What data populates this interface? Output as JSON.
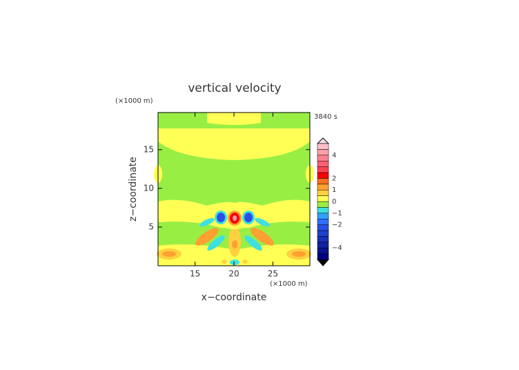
{
  "chart_data": {
    "type": "contour",
    "title": "vertical velocity",
    "xlabel": "x−coordinate",
    "ylabel": "z−coordinate",
    "x_unit": "(×1000 m)",
    "y_unit": "(×1000 m)",
    "time_label": "3840 s",
    "xlim": [
      10.25,
      29.75
    ],
    "ylim": [
      0,
      19.8
    ],
    "xticks": [
      15,
      20,
      25
    ],
    "yticks": [
      5,
      10,
      15
    ],
    "colorbar": {
      "levels": [
        -5,
        -4.5,
        -4,
        -3.5,
        -3,
        -2.5,
        -2,
        -1.5,
        -1,
        -0.5,
        0,
        0.5,
        1,
        1.5,
        2,
        2.5,
        3,
        3.5,
        4,
        4.5,
        5
      ],
      "colors": [
        "#000080",
        "#0a1490",
        "#1020a0",
        "#1830b8",
        "#2040d0",
        "#2850e8",
        "#3070ff",
        "#30a0ff",
        "#40e0e0",
        "#99ee44",
        "#ffff55",
        "#ffd040",
        "#ffa030",
        "#ff7020",
        "#ff0000",
        "#ff4050",
        "#ff6070",
        "#ff8090",
        "#ffa0a8",
        "#ffc0c8"
      ],
      "ticks": [
        {
          "value": -4,
          "label": "−4"
        },
        {
          "value": -2,
          "label": "−2"
        },
        {
          "value": -1,
          "label": "−1"
        },
        0,
        1,
        2,
        4
      ]
    }
  }
}
